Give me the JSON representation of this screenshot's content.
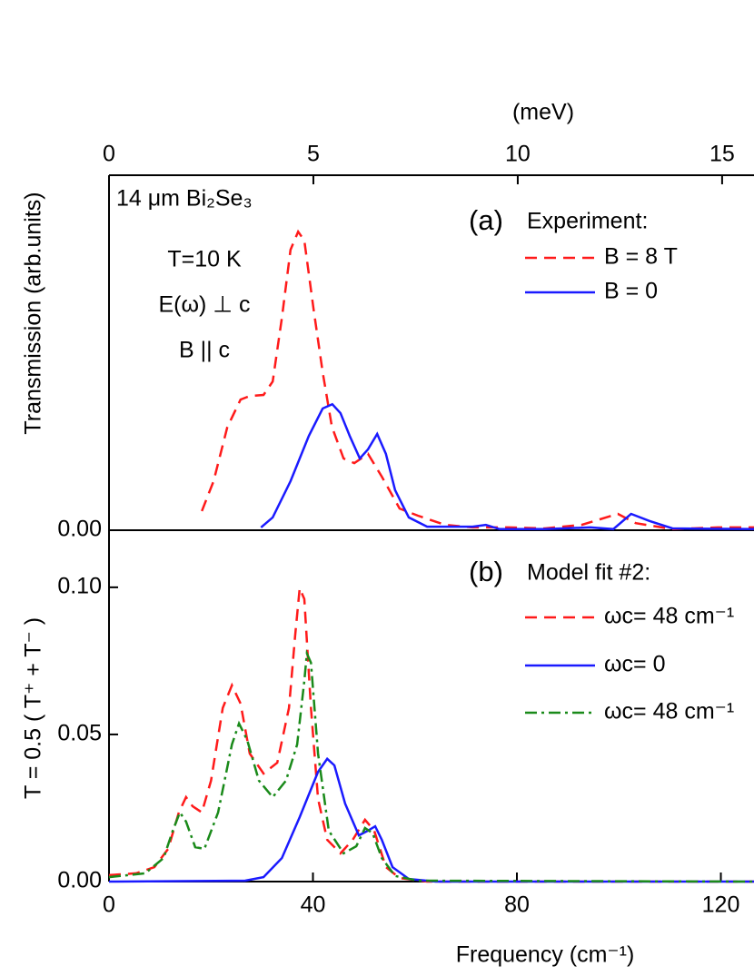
{
  "chart_data": [
    {
      "type": "line",
      "label": "(a)",
      "ylabel": "Transmission (arb.units)",
      "annotations": [
        "14 μm Bi₂Se₃",
        "T=10 K",
        "E(ω) ⊥ c",
        "B || c"
      ],
      "legend_title": "Experiment:",
      "xlim": [
        0,
        126.5
      ],
      "x2label": "(meV)",
      "x2lim": [
        0,
        15.78
      ],
      "x2ticks": [
        0,
        5,
        10,
        15
      ],
      "ylim": [
        0,
        1
      ],
      "yticks": [
        {
          "value": 0,
          "label": "0.00"
        }
      ],
      "series": [
        {
          "name": "B = 8 T",
          "color": "#ff1a1a",
          "style": "dashed",
          "x": [
            18.2,
            20.5,
            23.2,
            25.8,
            27.6,
            30.3,
            32.1,
            33.9,
            35.6,
            37.1,
            38.3,
            40.1,
            41.9,
            43.7,
            46.0,
            48.1,
            50.8,
            53.5,
            57.0,
            60.6,
            65.9,
            71.3,
            78.4,
            85.5,
            92.7,
            99.8,
            103.3,
            110.5,
            119.4,
            126.5
          ],
          "values": [
            0.054,
            0.138,
            0.29,
            0.368,
            0.378,
            0.381,
            0.419,
            0.598,
            0.79,
            0.841,
            0.816,
            0.624,
            0.445,
            0.292,
            0.202,
            0.189,
            0.215,
            0.151,
            0.061,
            0.041,
            0.015,
            0.008,
            0.008,
            0.005,
            0.015,
            0.046,
            0.02,
            0.003,
            0.008,
            0.008
          ]
        },
        {
          "name": "B = 0",
          "color": "#1a1aff",
          "style": "solid",
          "x": [
            29.8,
            32.1,
            35.6,
            39.2,
            41.9,
            43.8,
            45.4,
            47.2,
            49.2,
            50.8,
            52.6,
            54.3,
            56.1,
            58.8,
            62.4,
            71.3,
            73.9,
            76.6,
            85.5,
            94.4,
            98.9,
            102.4,
            106.0,
            110.5,
            126.5
          ],
          "values": [
            0.008,
            0.036,
            0.138,
            0.266,
            0.343,
            0.355,
            0.33,
            0.266,
            0.202,
            0.228,
            0.271,
            0.215,
            0.113,
            0.036,
            0.01,
            0.01,
            0.015,
            0.003,
            0.003,
            0.008,
            0.003,
            0.046,
            0.026,
            0.005,
            0.003
          ]
        }
      ]
    },
    {
      "type": "line",
      "label": "(b)",
      "ylabel": "T = 0.5 ( T⁺ + T⁻ )",
      "legend_title": "Model fit #2:",
      "xlabel": "Frequency (cm⁻¹)",
      "xlim": [
        0,
        126.5
      ],
      "xticks": [
        0,
        40,
        80,
        120
      ],
      "ylim": [
        0,
        0.1194
      ],
      "yticks": [
        {
          "value": 0,
          "label": "0.00"
        },
        0.05,
        {
          "value": 0.1,
          "label": "0.10"
        }
      ],
      "series": [
        {
          "name": "ωc= 48 cm⁻¹",
          "color": "#ff1a1a",
          "style": "dashed",
          "x": [
            0,
            5.3,
            8.9,
            11.6,
            13.7,
            15.1,
            16.4,
            18.2,
            20.0,
            22.3,
            24.1,
            25.8,
            27.6,
            30.3,
            33.0,
            35.3,
            36.5,
            37.4,
            38.3,
            39.6,
            41.0,
            42.8,
            45.4,
            47.8,
            50.2,
            52.0,
            54.3,
            57.0,
            62.4,
            126.5
          ],
          "values": [
            0.0022,
            0.0028,
            0.0049,
            0.0111,
            0.0235,
            0.0287,
            0.0256,
            0.0235,
            0.0343,
            0.059,
            0.0667,
            0.0605,
            0.0435,
            0.0367,
            0.0404,
            0.059,
            0.0836,
            0.0997,
            0.096,
            0.059,
            0.0281,
            0.0142,
            0.0096,
            0.0142,
            0.021,
            0.0173,
            0.0049,
            0.0012,
            0,
            0
          ]
        },
        {
          "name": "ωc= 0",
          "color": "#1a1aff",
          "style": "solid",
          "x": [
            0,
            26.7,
            30.3,
            33.9,
            37.4,
            41.0,
            42.8,
            44.2,
            46.3,
            49.0,
            50.8,
            52.2,
            53.5,
            55.6,
            58.8,
            64.1,
            126.5
          ],
          "values": [
            0,
            0.0003,
            0.0015,
            0.008,
            0.0219,
            0.0373,
            0.0417,
            0.0395,
            0.0265,
            0.0157,
            0.0173,
            0.0188,
            0.0142,
            0.0049,
            0.0009,
            0,
            0
          ]
        },
        {
          "name": "ωc= 48 cm⁻¹",
          "color": "#1a8a1a",
          "style": "dashdot",
          "x": [
            0,
            7.1,
            10.7,
            12.5,
            13.9,
            15.1,
            16.9,
            18.7,
            21.4,
            24.1,
            25.5,
            27.1,
            29.4,
            32.1,
            34.7,
            36.9,
            38.3,
            38.8,
            39.6,
            41.0,
            43.1,
            46.0,
            48.5,
            50.2,
            51.7,
            53.5,
            56.1,
            60.6,
            126.5
          ],
          "values": [
            0.0015,
            0.0028,
            0.008,
            0.0173,
            0.0235,
            0.0204,
            0.0117,
            0.0111,
            0.0235,
            0.0466,
            0.0537,
            0.0481,
            0.0343,
            0.0287,
            0.0343,
            0.0466,
            0.0682,
            0.0775,
            0.0744,
            0.0435,
            0.0173,
            0.0096,
            0.012,
            0.0182,
            0.0164,
            0.008,
            0.0019,
            0.0003,
            0
          ]
        }
      ]
    }
  ]
}
